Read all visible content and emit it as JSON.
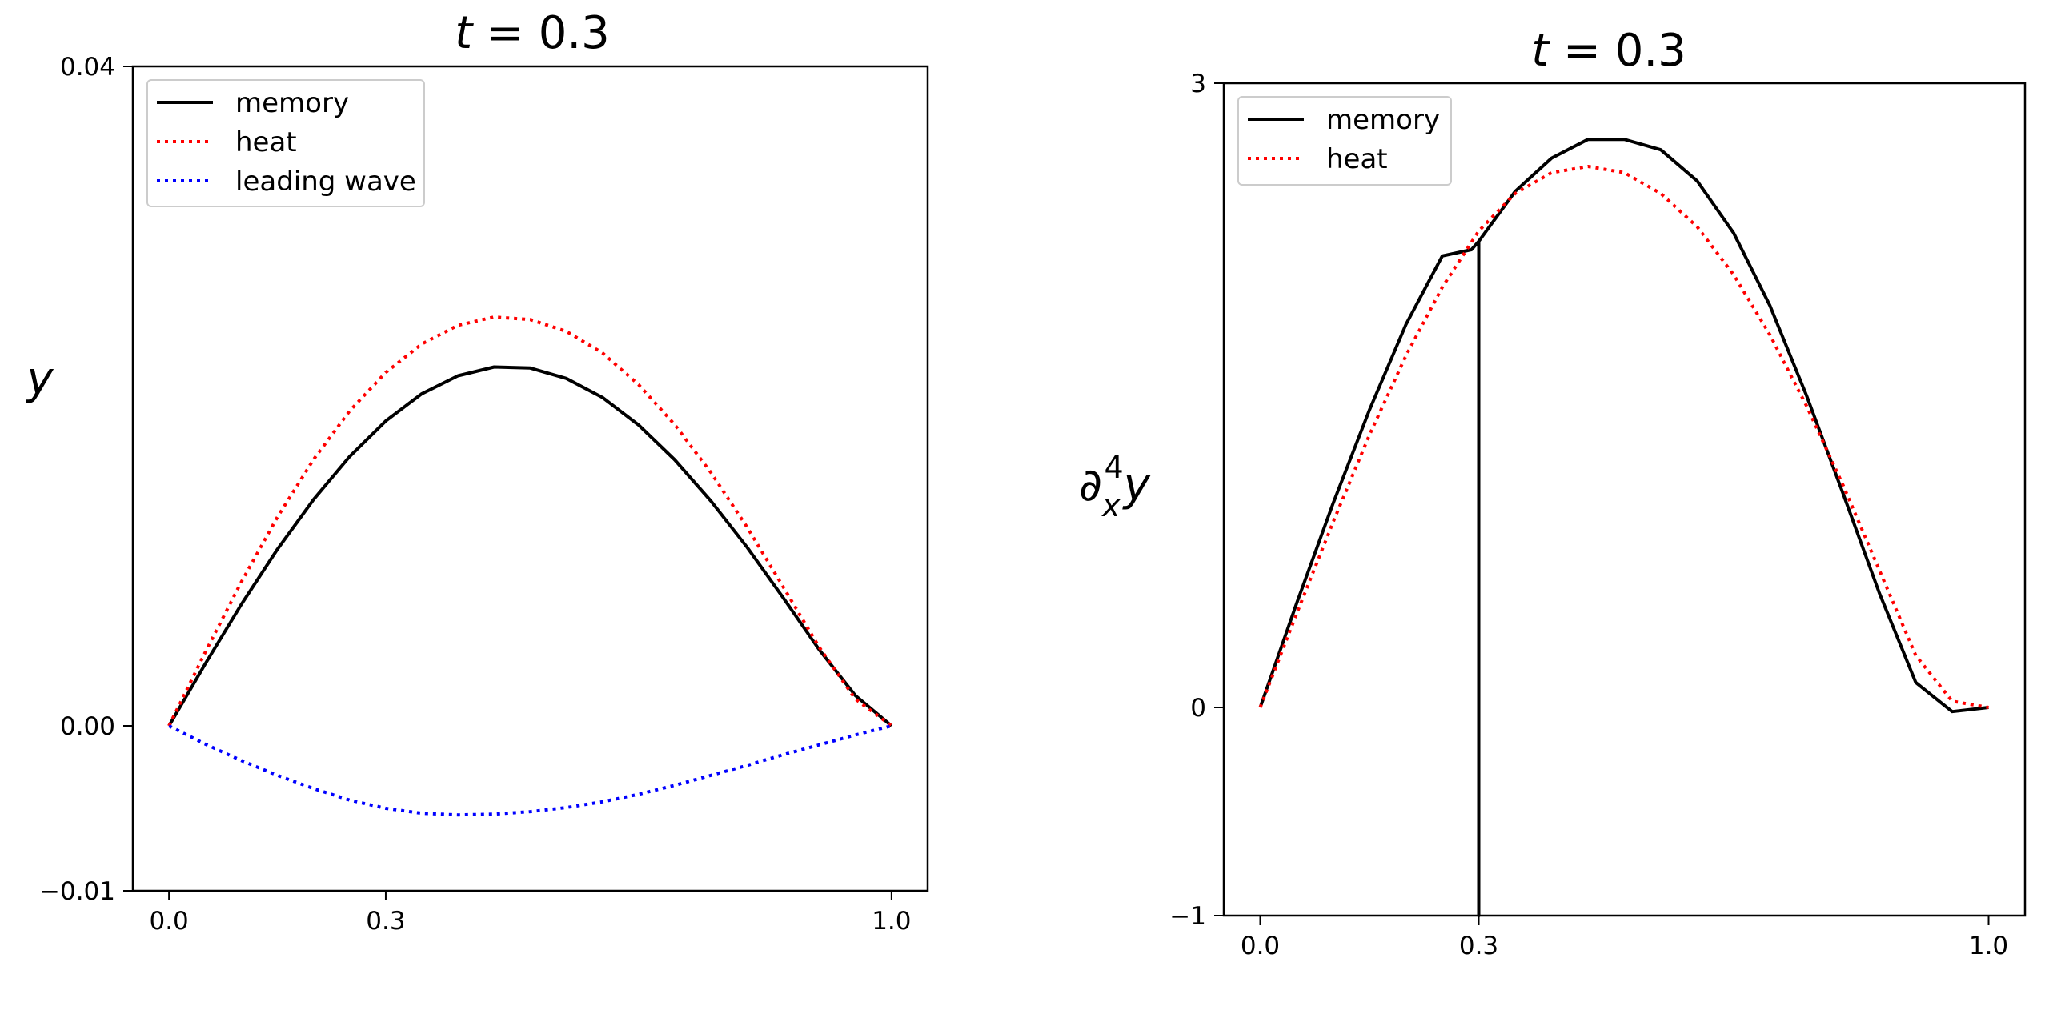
{
  "chart_data": [
    {
      "type": "line",
      "title_var": "t",
      "title_eq": " = 0.3",
      "ylabel": "y",
      "xticks": [
        0.0,
        0.3,
        1.0
      ],
      "xtick_labels": [
        "0.0",
        "0.3",
        "1.0"
      ],
      "yticks": [
        0.04,
        0.0,
        -0.01
      ],
      "ytick_labels": [
        "0.04",
        "0.00",
        "−0.01"
      ],
      "xlim": [
        -0.05,
        1.05
      ],
      "ylim": [
        -0.01,
        0.04
      ],
      "legend_position": "top-left",
      "series": [
        {
          "name": "memory",
          "color": "#000000",
          "style": "solid",
          "x": [
            0.0,
            0.05,
            0.1,
            0.15,
            0.2,
            0.25,
            0.3,
            0.35,
            0.4,
            0.45,
            0.5,
            0.55,
            0.6,
            0.65,
            0.7,
            0.75,
            0.8,
            0.85,
            0.9,
            0.95,
            1.0
          ],
          "y": [
            0.0,
            0.00375,
            0.00736,
            0.01071,
            0.01373,
            0.01634,
            0.0185,
            0.02015,
            0.02124,
            0.02177,
            0.02171,
            0.02108,
            0.01992,
            0.01825,
            0.01614,
            0.01364,
            0.01084,
            0.00777,
            0.00461,
            0.00184,
            0.0
          ]
        },
        {
          "name": "heat",
          "color": "#ff0000",
          "style": "dotted",
          "x": [
            0.0,
            0.05,
            0.1,
            0.15,
            0.2,
            0.25,
            0.3,
            0.35,
            0.4,
            0.45,
            0.5,
            0.55,
            0.6,
            0.65,
            0.7,
            0.75,
            0.8,
            0.85,
            0.9,
            0.95,
            1.0
          ],
          "y": [
            0.0,
            0.00445,
            0.00872,
            0.01266,
            0.01616,
            0.0191,
            0.02144,
            0.02317,
            0.0243,
            0.0248,
            0.02465,
            0.02393,
            0.02262,
            0.0207,
            0.01827,
            0.01537,
            0.01206,
            0.00843,
            0.00476,
            0.00162,
            0.0
          ]
        },
        {
          "name": "leading wave",
          "color": "#0000ff",
          "style": "dotted",
          "x": [
            0.0,
            0.05,
            0.1,
            0.15,
            0.2,
            0.25,
            0.3,
            0.35,
            0.4,
            0.45,
            0.5,
            0.55,
            0.6,
            0.65,
            0.7,
            0.75,
            0.8,
            0.85,
            0.9,
            0.95,
            1.0
          ],
          "y": [
            0.0,
            -0.0011,
            -0.0021,
            -0.003,
            -0.0038,
            -0.0045,
            -0.005,
            -0.0053,
            -0.0054,
            -0.00535,
            -0.0052,
            -0.00495,
            -0.0046,
            -0.00415,
            -0.0036,
            -0.003,
            -0.0024,
            -0.00175,
            -0.00115,
            -0.00055,
            0.0
          ]
        }
      ]
    },
    {
      "type": "line",
      "title_var": "t",
      "title_eq": " = 0.3",
      "ylabel_base": "∂",
      "ylabel_sub": "x",
      "ylabel_sup": "4",
      "ylabel_tail": "y",
      "xticks": [
        0.0,
        0.3,
        1.0
      ],
      "xtick_labels": [
        "0.0",
        "0.3",
        "1.0"
      ],
      "yticks": [
        3,
        0,
        -1
      ],
      "ytick_labels": [
        "3",
        "0",
        "−1"
      ],
      "xlim": [
        -0.05,
        1.05
      ],
      "ylim": [
        -1,
        3
      ],
      "legend_position": "top-left",
      "series": [
        {
          "name": "memory",
          "color": "#000000",
          "style": "solid",
          "x": [
            0.0,
            0.05,
            0.1,
            0.15,
            0.2,
            0.25,
            0.29,
            0.3,
            0.3,
            0.3,
            0.35,
            0.4,
            0.45,
            0.5,
            0.55,
            0.6,
            0.65,
            0.7,
            0.75,
            0.8,
            0.85,
            0.9,
            0.95,
            1.0
          ],
          "y": [
            0.0,
            0.5,
            0.98,
            1.43,
            1.84,
            2.17,
            2.2,
            2.24,
            -1.0,
            2.24,
            2.48,
            2.64,
            2.73,
            2.73,
            2.68,
            2.53,
            2.28,
            1.93,
            1.5,
            1.03,
            0.55,
            0.12,
            -0.02,
            0.0
          ]
        },
        {
          "name": "heat",
          "color": "#ff0000",
          "style": "dotted",
          "x": [
            0.0,
            0.05,
            0.1,
            0.15,
            0.2,
            0.25,
            0.3,
            0.35,
            0.4,
            0.45,
            0.5,
            0.55,
            0.6,
            0.65,
            0.7,
            0.75,
            0.8,
            0.85,
            0.9,
            0.95,
            1.0
          ],
          "y": [
            0.0,
            0.45,
            0.89,
            1.31,
            1.69,
            2.02,
            2.29,
            2.47,
            2.57,
            2.6,
            2.57,
            2.47,
            2.31,
            2.08,
            1.79,
            1.45,
            1.07,
            0.66,
            0.25,
            0.03,
            0.0
          ]
        }
      ]
    }
  ]
}
